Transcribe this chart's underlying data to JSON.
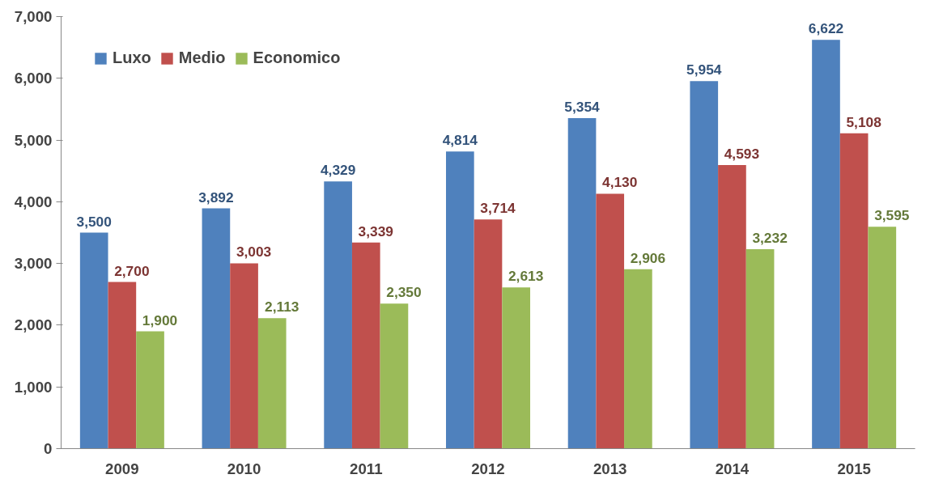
{
  "chart_data": {
    "type": "bar",
    "categories": [
      "2009",
      "2010",
      "2011",
      "2012",
      "2013",
      "2014",
      "2015"
    ],
    "series": [
      {
        "name": "Luxo",
        "color": "#4f81bd",
        "values": [
          3500,
          3892,
          4329,
          4814,
          5354,
          5954,
          6622
        ],
        "value_labels": [
          "3,500",
          "3,892",
          "4,329",
          "4,814",
          "5,354",
          "5,954",
          "6,622"
        ]
      },
      {
        "name": "Medio",
        "color": "#c0504d",
        "values": [
          2700,
          3003,
          3339,
          3714,
          4130,
          4593,
          5108
        ],
        "value_labels": [
          "2,700",
          "3,003",
          "3,339",
          "3,714",
          "4,130",
          "4,593",
          "5,108"
        ]
      },
      {
        "name": "Economico",
        "color": "#9bbb59",
        "values": [
          1900,
          2113,
          2350,
          2613,
          2906,
          3232,
          3595
        ],
        "value_labels": [
          "1,900",
          "2,113",
          "2,350",
          "2,613",
          "2,906",
          "3,232",
          "3,595"
        ]
      }
    ],
    "ylim": [
      0,
      7000
    ],
    "yticks": [
      {
        "value": 0,
        "label": "0"
      },
      {
        "value": 1000,
        "label": "1,000"
      },
      {
        "value": 2000,
        "label": "2,000"
      },
      {
        "value": 3000,
        "label": "3,000"
      },
      {
        "value": 4000,
        "label": "4,000"
      },
      {
        "value": 5000,
        "label": "5,000"
      },
      {
        "value": 6000,
        "label": "6,000"
      },
      {
        "value": 7000,
        "label": "7,000"
      }
    ],
    "grid": false,
    "legend": "top left"
  }
}
